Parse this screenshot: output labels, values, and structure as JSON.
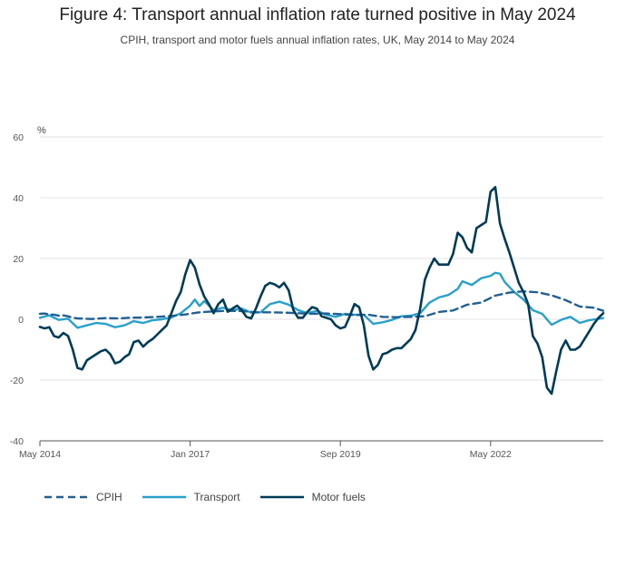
{
  "title": "Figure 4: Transport annual inflation rate turned positive in May 2024",
  "subtitle": "CPIH, transport and motor fuels annual inflation rates, UK, May 2014 to May 2024",
  "chart_data": {
    "type": "line",
    "title": "Figure 4: Transport annual inflation rate turned positive in May 2024",
    "subtitle": "CPIH, transport and motor fuels annual inflation rates, UK, May 2014 to May 2024",
    "ylabel": "%",
    "xlabel": "",
    "ylim": [
      -40,
      60
    ],
    "yticks": [
      -40,
      -20,
      0,
      20,
      40,
      60
    ],
    "grid": "horizontal",
    "legend_position": "bottom",
    "x_start": "May 2014",
    "x_end": "May 2024",
    "x_tick_labels": [
      "May 2014",
      "Jan 2017",
      "Sep 2019",
      "May 2022"
    ],
    "x_tick_dates": [
      "2014-05",
      "2017-01",
      "2019-09",
      "2022-05"
    ],
    "series": [
      {
        "name": "CPIH",
        "color": "#206095",
        "dash": "dashed",
        "points": [
          [
            "2014-05",
            1.8
          ],
          [
            "2014-06",
            1.9
          ],
          [
            "2014-07",
            1.6
          ],
          [
            "2014-08",
            1.5
          ],
          [
            "2014-09",
            1.2
          ],
          [
            "2014-10",
            1.3
          ],
          [
            "2014-11",
            1.0
          ],
          [
            "2014-12",
            0.5
          ],
          [
            "2015-01",
            0.3
          ],
          [
            "2015-04",
            0.1
          ],
          [
            "2015-07",
            0.4
          ],
          [
            "2015-10",
            0.3
          ],
          [
            "2015-12",
            0.5
          ],
          [
            "2016-03",
            0.6
          ],
          [
            "2016-06",
            0.8
          ],
          [
            "2016-09",
            1.1
          ],
          [
            "2016-12",
            1.6
          ],
          [
            "2017-03",
            2.3
          ],
          [
            "2017-06",
            2.6
          ],
          [
            "2017-09",
            2.8
          ],
          [
            "2017-12",
            2.7
          ],
          [
            "2018-03",
            2.3
          ],
          [
            "2018-06",
            2.3
          ],
          [
            "2018-09",
            2.2
          ],
          [
            "2018-12",
            2.0
          ],
          [
            "2019-03",
            1.8
          ],
          [
            "2019-06",
            1.9
          ],
          [
            "2019-09",
            1.7
          ],
          [
            "2019-12",
            1.4
          ],
          [
            "2020-03",
            1.5
          ],
          [
            "2020-06",
            0.8
          ],
          [
            "2020-09",
            0.7
          ],
          [
            "2020-12",
            0.8
          ],
          [
            "2021-03",
            1.0
          ],
          [
            "2021-06",
            2.4
          ],
          [
            "2021-09",
            2.9
          ],
          [
            "2021-12",
            4.8
          ],
          [
            "2022-03",
            5.5
          ],
          [
            "2022-06",
            7.8
          ],
          [
            "2022-09",
            8.8
          ],
          [
            "2022-12",
            9.2
          ],
          [
            "2023-03",
            8.9
          ],
          [
            "2023-06",
            7.9
          ],
          [
            "2023-09",
            6.3
          ],
          [
            "2023-12",
            4.2
          ],
          [
            "2024-03",
            3.8
          ],
          [
            "2024-05",
            2.8
          ]
        ]
      },
      {
        "name": "Transport",
        "color": "#27a0cc",
        "dash": "solid",
        "points": [
          [
            "2014-05",
            0.5
          ],
          [
            "2014-07",
            1.3
          ],
          [
            "2014-09",
            -0.2
          ],
          [
            "2014-11",
            0.2
          ],
          [
            "2015-01",
            -2.8
          ],
          [
            "2015-03",
            -2.0
          ],
          [
            "2015-05",
            -1.2
          ],
          [
            "2015-07",
            -1.5
          ],
          [
            "2015-09",
            -2.6
          ],
          [
            "2015-11",
            -2.0
          ],
          [
            "2016-01",
            -0.6
          ],
          [
            "2016-03",
            -1.2
          ],
          [
            "2016-05",
            -0.3
          ],
          [
            "2016-07",
            0.0
          ],
          [
            "2016-09",
            0.6
          ],
          [
            "2016-11",
            2.0
          ],
          [
            "2017-01",
            4.5
          ],
          [
            "2017-02",
            6.5
          ],
          [
            "2017-03",
            4.4
          ],
          [
            "2017-04",
            6.0
          ],
          [
            "2017-06",
            3.0
          ],
          [
            "2017-08",
            3.8
          ],
          [
            "2017-10",
            3.0
          ],
          [
            "2017-12",
            3.5
          ],
          [
            "2018-02",
            2.2
          ],
          [
            "2018-04",
            2.3
          ],
          [
            "2018-06",
            5.0
          ],
          [
            "2018-08",
            5.8
          ],
          [
            "2018-10",
            4.8
          ],
          [
            "2018-12",
            3.0
          ],
          [
            "2019-02",
            2.0
          ],
          [
            "2019-04",
            2.8
          ],
          [
            "2019-06",
            1.5
          ],
          [
            "2019-08",
            0.8
          ],
          [
            "2019-10",
            1.8
          ],
          [
            "2019-12",
            1.5
          ],
          [
            "2020-02",
            1.5
          ],
          [
            "2020-04",
            -1.5
          ],
          [
            "2020-06",
            -1.0
          ],
          [
            "2020-08",
            -0.2
          ],
          [
            "2020-10",
            1.0
          ],
          [
            "2020-12",
            1.2
          ],
          [
            "2021-02",
            2.0
          ],
          [
            "2021-04",
            5.5
          ],
          [
            "2021-06",
            7.2
          ],
          [
            "2021-08",
            8.0
          ],
          [
            "2021-10",
            10.0
          ],
          [
            "2021-11",
            12.5
          ],
          [
            "2022-01",
            11.3
          ],
          [
            "2022-03",
            13.5
          ],
          [
            "2022-05",
            14.3
          ],
          [
            "2022-06",
            15.3
          ],
          [
            "2022-07",
            15.0
          ],
          [
            "2022-08",
            12.3
          ],
          [
            "2022-10",
            9.0
          ],
          [
            "2022-12",
            6.5
          ],
          [
            "2023-02",
            3.0
          ],
          [
            "2023-04",
            1.8
          ],
          [
            "2023-06",
            -1.8
          ],
          [
            "2023-08",
            -0.2
          ],
          [
            "2023-10",
            0.8
          ],
          [
            "2023-12",
            -1.2
          ],
          [
            "2024-02",
            -0.3
          ],
          [
            "2024-05",
            0.4
          ]
        ]
      },
      {
        "name": "Motor fuels",
        "color": "#003c57",
        "dash": "solid",
        "points": [
          [
            "2014-05",
            -2.5
          ],
          [
            "2014-06",
            -3.0
          ],
          [
            "2014-07",
            -2.6
          ],
          [
            "2014-08",
            -5.5
          ],
          [
            "2014-09",
            -6.0
          ],
          [
            "2014-10",
            -4.5
          ],
          [
            "2014-11",
            -5.5
          ],
          [
            "2014-12",
            -10.0
          ],
          [
            "2015-01",
            -16.0
          ],
          [
            "2015-02",
            -16.5
          ],
          [
            "2015-03",
            -13.5
          ],
          [
            "2015-04",
            -12.5
          ],
          [
            "2015-05",
            -11.5
          ],
          [
            "2015-06",
            -10.5
          ],
          [
            "2015-07",
            -10.0
          ],
          [
            "2015-08",
            -11.5
          ],
          [
            "2015-09",
            -14.5
          ],
          [
            "2015-10",
            -14.0
          ],
          [
            "2015-11",
            -12.5
          ],
          [
            "2015-12",
            -11.5
          ],
          [
            "2016-01",
            -7.5
          ],
          [
            "2016-02",
            -7.0
          ],
          [
            "2016-03",
            -9.0
          ],
          [
            "2016-04",
            -7.5
          ],
          [
            "2016-05",
            -6.5
          ],
          [
            "2016-06",
            -5.0
          ],
          [
            "2016-07",
            -3.5
          ],
          [
            "2016-08",
            -2.0
          ],
          [
            "2016-09",
            2.0
          ],
          [
            "2016-10",
            6.0
          ],
          [
            "2016-11",
            9.0
          ],
          [
            "2016-12",
            15.0
          ],
          [
            "2017-01",
            19.5
          ],
          [
            "2017-02",
            17.0
          ],
          [
            "2017-03",
            11.5
          ],
          [
            "2017-04",
            7.5
          ],
          [
            "2017-05",
            5.0
          ],
          [
            "2017-06",
            2.0
          ],
          [
            "2017-07",
            5.0
          ],
          [
            "2017-08",
            6.5
          ],
          [
            "2017-09",
            2.5
          ],
          [
            "2017-10",
            3.5
          ],
          [
            "2017-11",
            4.5
          ],
          [
            "2017-12",
            3.0
          ],
          [
            "2018-01",
            0.8
          ],
          [
            "2018-02",
            0.3
          ],
          [
            "2018-03",
            3.5
          ],
          [
            "2018-04",
            7.5
          ],
          [
            "2018-05",
            11.0
          ],
          [
            "2018-06",
            12.0
          ],
          [
            "2018-07",
            11.5
          ],
          [
            "2018-08",
            10.5
          ],
          [
            "2018-09",
            12.0
          ],
          [
            "2018-10",
            9.5
          ],
          [
            "2018-11",
            3.0
          ],
          [
            "2018-12",
            0.5
          ],
          [
            "2019-01",
            0.5
          ],
          [
            "2019-02",
            2.5
          ],
          [
            "2019-03",
            4.0
          ],
          [
            "2019-04",
            3.5
          ],
          [
            "2019-05",
            1.0
          ],
          [
            "2019-06",
            0.5
          ],
          [
            "2019-07",
            0.0
          ],
          [
            "2019-08",
            -2.0
          ],
          [
            "2019-09",
            -3.0
          ],
          [
            "2019-10",
            -2.5
          ],
          [
            "2019-11",
            1.0
          ],
          [
            "2019-12",
            5.0
          ],
          [
            "2020-01",
            4.0
          ],
          [
            "2020-02",
            -2.0
          ],
          [
            "2020-03",
            -12.0
          ],
          [
            "2020-04",
            -16.5
          ],
          [
            "2020-05",
            -15.0
          ],
          [
            "2020-06",
            -11.5
          ],
          [
            "2020-07",
            -11.0
          ],
          [
            "2020-08",
            -10.0
          ],
          [
            "2020-09",
            -9.5
          ],
          [
            "2020-10",
            -9.5
          ],
          [
            "2020-11",
            -8.0
          ],
          [
            "2020-12",
            -6.5
          ],
          [
            "2021-01",
            -3.5
          ],
          [
            "2021-02",
            3.5
          ],
          [
            "2021-03",
            13.0
          ],
          [
            "2021-04",
            17.0
          ],
          [
            "2021-05",
            20.0
          ],
          [
            "2021-06",
            18.0
          ],
          [
            "2021-07",
            18.0
          ],
          [
            "2021-08",
            18.0
          ],
          [
            "2021-09",
            21.5
          ],
          [
            "2021-10",
            28.5
          ],
          [
            "2021-11",
            27.0
          ],
          [
            "2021-12",
            23.5
          ],
          [
            "2022-01",
            22.0
          ],
          [
            "2022-02",
            30.0
          ],
          [
            "2022-03",
            31.0
          ],
          [
            "2022-04",
            32.0
          ],
          [
            "2022-05",
            42.0
          ],
          [
            "2022-06",
            43.5
          ],
          [
            "2022-07",
            31.5
          ],
          [
            "2022-08",
            26.5
          ],
          [
            "2022-09",
            22.0
          ],
          [
            "2022-10",
            17.0
          ],
          [
            "2022-11",
            12.0
          ],
          [
            "2022-12",
            9.0
          ],
          [
            "2023-01",
            5.0
          ],
          [
            "2023-02",
            -5.5
          ],
          [
            "2023-03",
            -8.0
          ],
          [
            "2023-04",
            -12.5
          ],
          [
            "2023-05",
            -22.5
          ],
          [
            "2023-06",
            -24.5
          ],
          [
            "2023-07",
            -17.0
          ],
          [
            "2023-08",
            -10.0
          ],
          [
            "2023-09",
            -7.0
          ],
          [
            "2023-10",
            -10.0
          ],
          [
            "2023-11",
            -10.0
          ],
          [
            "2023-12",
            -9.0
          ],
          [
            "2024-01",
            -6.5
          ],
          [
            "2024-02",
            -4.0
          ],
          [
            "2024-03",
            -1.5
          ],
          [
            "2024-04",
            0.5
          ],
          [
            "2024-05",
            2.0
          ]
        ]
      }
    ]
  }
}
